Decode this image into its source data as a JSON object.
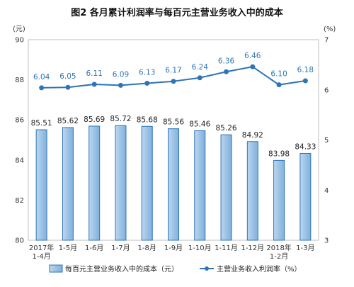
{
  "chart_data": {
    "type": "bar",
    "title": "图2  各月累计利润率与每百元主营业务收入中的成本",
    "categories": [
      "2017年\n1-4月",
      "1-5月",
      "1-6月",
      "1-7月",
      "1-8月",
      "1-9月",
      "1-10月",
      "1-11月",
      "1-12月",
      "2018年\n1-2月",
      "1-3月"
    ],
    "series": [
      {
        "name": "每百元主营业务收入中的成本（元）",
        "type": "bar",
        "axis": "left",
        "values": [
          85.51,
          85.62,
          85.69,
          85.72,
          85.68,
          85.56,
          85.46,
          85.26,
          84.92,
          83.98,
          84.33
        ]
      },
      {
        "name": "主营业务收入利润率（%）",
        "type": "line",
        "axis": "right",
        "values": [
          6.04,
          6.05,
          6.11,
          6.09,
          6.13,
          6.17,
          6.24,
          6.36,
          6.46,
          6.1,
          6.18
        ]
      }
    ],
    "left_axis": {
      "unit": "(元)",
      "ylim": [
        80,
        90
      ],
      "ticks": [
        80,
        82,
        84,
        86,
        88,
        90
      ]
    },
    "right_axis": {
      "unit": "(%)",
      "ylim": [
        3,
        7
      ],
      "ticks": [
        3,
        4,
        5,
        6,
        7
      ]
    },
    "legend_position": "bottom",
    "grid": false,
    "colors": {
      "bar_fill": "#9dc3e6",
      "bar_stroke": "#2e75b6",
      "line": "#2e75b6",
      "frame": "#bfbfbf"
    }
  }
}
